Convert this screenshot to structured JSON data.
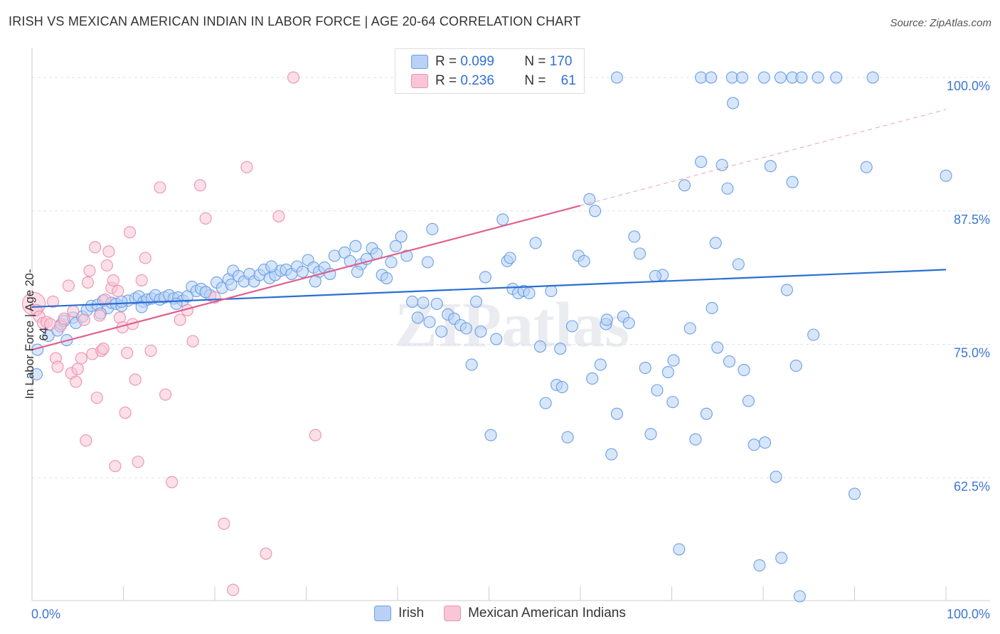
{
  "title": "IRISH VS MEXICAN AMERICAN INDIAN IN LABOR FORCE | AGE 20-64 CORRELATION CHART",
  "source": "Source: ZipAtlas.com",
  "watermark": "ZIPatlas",
  "colors": {
    "irish": "#6a9fe6",
    "irish_fill": "#b8d1f5",
    "irish_line": "#2a6fd3",
    "mexican": "#ef8fb0",
    "mexican_fill": "#f8c6d6",
    "mexican_line": "#e0608e",
    "axis_text": "#3c75d4"
  },
  "legend_top": [
    {
      "r_label": "R =",
      "r_value": "0.099",
      "n_label": "N =",
      "n_value": "170"
    },
    {
      "r_label": "R =",
      "r_value": "0.236",
      "n_label": "N =",
      "n_value": "61"
    }
  ],
  "legend_bottom": [
    "Irish",
    "Mexican American Indians"
  ],
  "chart_data": {
    "type": "scatter",
    "xlabel": "",
    "ylabel": "In Labor Force | Age 20-64",
    "xlim": [
      0,
      100
    ],
    "ylim": [
      51,
      102
    ],
    "x_tick_labels": [
      "0.0%",
      "100.0%"
    ],
    "y_tick_values": [
      62.5,
      75.0,
      87.5,
      100.0
    ],
    "y_tick_labels": [
      "62.5%",
      "75.0%",
      "87.5%",
      "100.0%"
    ],
    "grid": "horizontal dashed",
    "legend_placement": "top-center",
    "series": [
      {
        "name": "Irish",
        "trend": {
          "x": [
            0,
            100
          ],
          "y": [
            78.5,
            82.0
          ]
        },
        "points": [
          [
            0.5,
            72.2
          ],
          [
            0.6,
            74.5
          ],
          [
            1.8,
            75.8
          ],
          [
            2.8,
            76.3
          ],
          [
            3.2,
            76.9
          ],
          [
            3.5,
            77.2
          ],
          [
            4.5,
            77.5
          ],
          [
            4.8,
            77.0
          ],
          [
            5.5,
            77.6
          ],
          [
            6.0,
            78.2
          ],
          [
            6.5,
            78.6
          ],
          [
            7.2,
            78.7
          ],
          [
            7.8,
            79.1
          ],
          [
            8.3,
            78.4
          ],
          [
            8.7,
            78.9
          ],
          [
            9.2,
            78.8
          ],
          [
            9.8,
            78.6
          ],
          [
            10.5,
            79.1
          ],
          [
            11.3,
            79.3
          ],
          [
            11.7,
            79.5
          ],
          [
            12.2,
            79.0
          ],
          [
            12.6,
            79.2
          ],
          [
            13.1,
            79.3
          ],
          [
            13.5,
            79.6
          ],
          [
            14.0,
            79.2
          ],
          [
            14.5,
            79.4
          ],
          [
            15.0,
            79.6
          ],
          [
            15.5,
            79.3
          ],
          [
            16.0,
            79.4
          ],
          [
            16.5,
            79.1
          ],
          [
            17.0,
            79.5
          ],
          [
            17.5,
            80.4
          ],
          [
            18.0,
            80.0
          ],
          [
            18.5,
            80.2
          ],
          [
            19.0,
            79.9
          ],
          [
            19.5,
            79.6
          ],
          [
            20.2,
            80.8
          ],
          [
            20.8,
            80.3
          ],
          [
            21.5,
            81.1
          ],
          [
            22.0,
            81.9
          ],
          [
            22.6,
            81.4
          ],
          [
            23.2,
            80.9
          ],
          [
            23.8,
            81.6
          ],
          [
            24.3,
            80.9
          ],
          [
            24.9,
            81.5
          ],
          [
            25.4,
            82.0
          ],
          [
            26.0,
            81.2
          ],
          [
            26.6,
            81.5
          ],
          [
            27.2,
            81.9
          ],
          [
            27.8,
            82.0
          ],
          [
            28.4,
            81.6
          ],
          [
            29.0,
            82.3
          ],
          [
            29.6,
            81.8
          ],
          [
            30.2,
            82.9
          ],
          [
            30.8,
            82.2
          ],
          [
            31.4,
            81.8
          ],
          [
            32.0,
            82.2
          ],
          [
            32.6,
            81.6
          ],
          [
            33.1,
            83.3
          ],
          [
            34.2,
            83.6
          ],
          [
            34.8,
            82.8
          ],
          [
            35.4,
            84.2
          ],
          [
            36.0,
            82.5
          ],
          [
            36.6,
            83.0
          ],
          [
            37.2,
            84.0
          ],
          [
            37.7,
            83.5
          ],
          [
            38.3,
            81.5
          ],
          [
            38.8,
            81.2
          ],
          [
            39.3,
            82.7
          ],
          [
            39.8,
            84.2
          ],
          [
            40.4,
            85.1
          ],
          [
            41.0,
            83.3
          ],
          [
            41.6,
            79.0
          ],
          [
            42.2,
            77.5
          ],
          [
            42.8,
            78.9
          ],
          [
            43.3,
            82.7
          ],
          [
            43.8,
            85.8
          ],
          [
            44.3,
            78.8
          ],
          [
            44.8,
            76.2
          ],
          [
            45.5,
            77.8
          ],
          [
            46.2,
            77.4
          ],
          [
            46.9,
            76.8
          ],
          [
            47.5,
            76.5
          ],
          [
            48.1,
            73.1
          ],
          [
            48.6,
            79.0
          ],
          [
            49.1,
            76.2
          ],
          [
            49.6,
            81.3
          ],
          [
            50.2,
            66.5
          ],
          [
            50.8,
            75.5
          ],
          [
            51.5,
            86.7
          ],
          [
            52.0,
            82.8
          ],
          [
            52.6,
            80.2
          ],
          [
            53.2,
            79.8
          ],
          [
            53.8,
            80.0
          ],
          [
            54.4,
            79.8
          ],
          [
            55.1,
            84.5
          ],
          [
            55.6,
            74.8
          ],
          [
            56.2,
            69.5
          ],
          [
            56.8,
            80.0
          ],
          [
            57.4,
            71.2
          ],
          [
            58.0,
            71.0
          ],
          [
            58.6,
            66.3
          ],
          [
            59.1,
            76.7
          ],
          [
            59.8,
            83.3
          ],
          [
            60.4,
            82.8
          ],
          [
            61.0,
            88.6
          ],
          [
            61.6,
            87.5
          ],
          [
            62.2,
            73.1
          ],
          [
            62.8,
            76.9
          ],
          [
            63.4,
            64.7
          ],
          [
            64.0,
            68.5
          ],
          [
            64.7,
            77.6
          ],
          [
            65.3,
            77.0
          ],
          [
            65.9,
            85.1
          ],
          [
            66.5,
            83.5
          ],
          [
            67.1,
            72.8
          ],
          [
            67.7,
            66.6
          ],
          [
            68.4,
            70.7
          ],
          [
            69.0,
            81.5
          ],
          [
            69.6,
            72.4
          ],
          [
            70.2,
            73.5
          ],
          [
            70.8,
            55.8
          ],
          [
            71.4,
            89.9
          ],
          [
            72.0,
            76.5
          ],
          [
            72.6,
            66.1
          ],
          [
            73.2,
            92.1
          ],
          [
            73.8,
            68.5
          ],
          [
            74.4,
            78.4
          ],
          [
            75.0,
            74.7
          ],
          [
            75.5,
            91.8
          ],
          [
            76.1,
            89.6
          ],
          [
            76.7,
            97.6
          ],
          [
            77.3,
            82.5
          ],
          [
            77.9,
            72.6
          ],
          [
            78.4,
            69.7
          ],
          [
            79.0,
            65.6
          ],
          [
            79.6,
            54.3
          ],
          [
            80.2,
            65.8
          ],
          [
            80.8,
            91.7
          ],
          [
            81.4,
            62.6
          ],
          [
            82.0,
            55.0
          ],
          [
            82.6,
            80.1
          ],
          [
            83.2,
            90.2
          ],
          [
            84.0,
            51.4
          ],
          [
            85.5,
            75.9
          ],
          [
            88.0,
            100.0
          ],
          [
            90.0,
            61.0
          ],
          [
            91.3,
            91.6
          ],
          [
            92.0,
            100.0
          ],
          [
            100.0,
            90.8
          ],
          [
            64.0,
            100.0
          ],
          [
            73.2,
            100.0
          ],
          [
            74.3,
            100.0
          ],
          [
            76.6,
            100.0
          ],
          [
            77.7,
            100.0
          ],
          [
            80.1,
            100.0
          ],
          [
            81.9,
            100.0
          ],
          [
            83.2,
            100.0
          ],
          [
            86.0,
            100.0
          ],
          [
            84.2,
            100.0
          ],
          [
            3.8,
            75.4
          ],
          [
            7.5,
            77.9
          ],
          [
            9.8,
            79.0
          ],
          [
            12.0,
            78.5
          ],
          [
            15.8,
            78.8
          ],
          [
            19.0,
            79.9
          ],
          [
            21.8,
            80.6
          ],
          [
            26.2,
            82.3
          ],
          [
            31.0,
            80.9
          ],
          [
            35.6,
            81.8
          ],
          [
            43.5,
            77.1
          ],
          [
            52.3,
            83.1
          ],
          [
            57.8,
            74.6
          ],
          [
            62.9,
            77.3
          ],
          [
            68.2,
            81.4
          ],
          [
            74.8,
            84.5
          ],
          [
            76.3,
            73.4
          ],
          [
            83.6,
            73.0
          ],
          [
            70.1,
            69.6
          ],
          [
            61.3,
            71.8
          ]
        ]
      },
      {
        "name": "Mexican American Indians",
        "trend": {
          "x": [
            0,
            60
          ],
          "y": [
            74.5,
            88.0
          ]
        },
        "trend_extension": {
          "x": [
            60,
            100
          ],
          "y": [
            88.0,
            97.0
          ]
        },
        "points": [
          [
            0.2,
            78.8
          ],
          [
            0.5,
            78.2
          ],
          [
            0.8,
            77.6
          ],
          [
            1.2,
            77.0
          ],
          [
            1.6,
            77.1
          ],
          [
            2.0,
            76.9
          ],
          [
            2.3,
            79.0
          ],
          [
            2.6,
            73.7
          ],
          [
            2.8,
            72.9
          ],
          [
            3.1,
            76.7
          ],
          [
            3.5,
            77.4
          ],
          [
            4.0,
            80.5
          ],
          [
            4.3,
            72.3
          ],
          [
            4.5,
            78.1
          ],
          [
            4.8,
            71.5
          ],
          [
            5.0,
            72.7
          ],
          [
            5.4,
            73.7
          ],
          [
            5.7,
            77.3
          ],
          [
            5.9,
            66.0
          ],
          [
            6.1,
            80.8
          ],
          [
            6.3,
            81.9
          ],
          [
            6.6,
            74.1
          ],
          [
            6.9,
            84.1
          ],
          [
            7.1,
            70.0
          ],
          [
            7.4,
            77.7
          ],
          [
            7.6,
            74.4
          ],
          [
            7.8,
            74.6
          ],
          [
            8.0,
            79.2
          ],
          [
            8.2,
            82.4
          ],
          [
            8.4,
            83.7
          ],
          [
            8.7,
            80.3
          ],
          [
            8.9,
            81.0
          ],
          [
            9.1,
            63.6
          ],
          [
            9.4,
            80.0
          ],
          [
            9.6,
            77.5
          ],
          [
            9.9,
            76.6
          ],
          [
            10.2,
            68.6
          ],
          [
            10.4,
            74.2
          ],
          [
            10.7,
            85.5
          ],
          [
            11.0,
            76.9
          ],
          [
            11.3,
            71.7
          ],
          [
            11.6,
            64.0
          ],
          [
            12.0,
            81.0
          ],
          [
            12.4,
            83.1
          ],
          [
            13.0,
            74.4
          ],
          [
            14.0,
            89.7
          ],
          [
            14.6,
            70.3
          ],
          [
            15.3,
            62.1
          ],
          [
            16.2,
            77.3
          ],
          [
            17.0,
            78.2
          ],
          [
            17.6,
            75.3
          ],
          [
            18.4,
            89.9
          ],
          [
            19.0,
            86.8
          ],
          [
            20.0,
            79.4
          ],
          [
            21.0,
            58.2
          ],
          [
            22.0,
            52.0
          ],
          [
            23.5,
            91.6
          ],
          [
            25.6,
            55.4
          ],
          [
            27.0,
            87.0
          ],
          [
            31.0,
            66.5
          ],
          [
            28.6,
            100.0
          ]
        ]
      }
    ]
  }
}
